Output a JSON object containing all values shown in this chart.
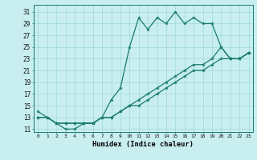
{
  "xlabel": "Humidex (Indice chaleur)",
  "x_hours": [
    0,
    1,
    2,
    3,
    4,
    5,
    6,
    7,
    8,
    9,
    10,
    11,
    12,
    13,
    14,
    15,
    16,
    17,
    18,
    19,
    20,
    21,
    22,
    23
  ],
  "line_main": [
    14,
    13,
    12,
    11,
    11,
    12,
    12,
    13,
    16,
    18,
    25,
    30,
    28,
    30,
    29,
    31,
    29,
    30,
    29,
    29,
    25,
    23,
    23,
    24
  ],
  "line_upper": [
    13,
    13,
    12,
    12,
    12,
    12,
    12,
    13,
    13,
    14,
    15,
    16,
    17,
    18,
    19,
    20,
    21,
    22,
    22,
    23,
    25,
    23,
    23,
    24
  ],
  "line_lower": [
    13,
    13,
    12,
    12,
    12,
    12,
    12,
    13,
    13,
    14,
    15,
    15,
    16,
    17,
    18,
    19,
    20,
    21,
    21,
    22,
    23,
    23,
    23,
    24
  ],
  "color": "#1a7a6e",
  "bg_color": "#c8eef0",
  "grid_color": "#9dd8dc",
  "ylim": [
    10.5,
    32.2
  ],
  "xlim": [
    -0.5,
    23.5
  ],
  "yticks": [
    11,
    13,
    15,
    17,
    19,
    21,
    23,
    25,
    27,
    29,
    31
  ],
  "xticks": [
    0,
    1,
    2,
    3,
    4,
    5,
    6,
    7,
    8,
    9,
    10,
    11,
    12,
    13,
    14,
    15,
    16,
    17,
    18,
    19,
    20,
    21,
    22,
    23
  ],
  "markersize": 3.0,
  "linewidth": 0.9
}
